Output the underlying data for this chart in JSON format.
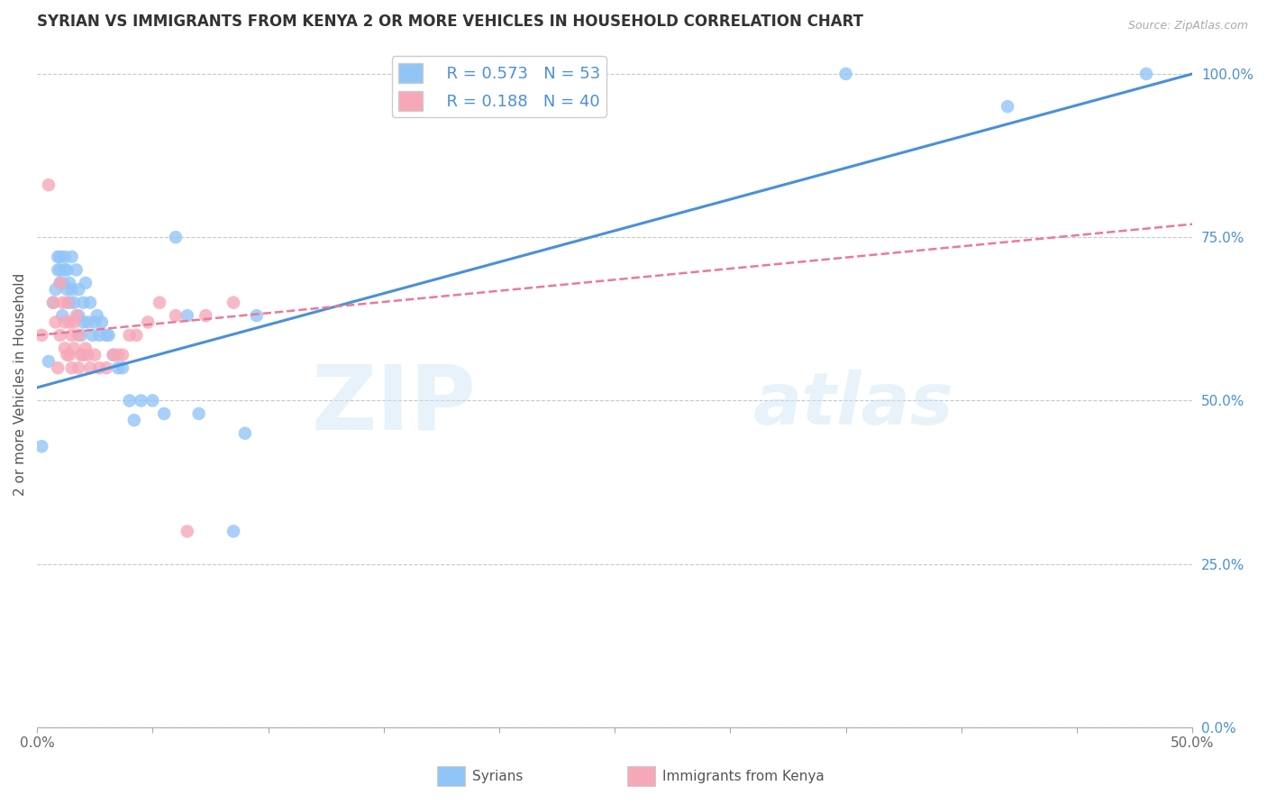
{
  "title": "SYRIAN VS IMMIGRANTS FROM KENYA 2 OR MORE VEHICLES IN HOUSEHOLD CORRELATION CHART",
  "source": "Source: ZipAtlas.com",
  "ylabel": "2 or more Vehicles in Household",
  "x_min": 0.0,
  "x_max": 0.5,
  "y_min": 0.0,
  "y_max": 1.05,
  "x_tick_pos": [
    0.0,
    0.05,
    0.1,
    0.15,
    0.2,
    0.25,
    0.3,
    0.35,
    0.4,
    0.45,
    0.5
  ],
  "x_tick_labels": [
    "0.0%",
    "",
    "",
    "",
    "",
    "",
    "",
    "",
    "",
    "",
    "50.0%"
  ],
  "y_tick_labels_right": [
    "0.0%",
    "25.0%",
    "50.0%",
    "75.0%",
    "100.0%"
  ],
  "y_ticks_right": [
    0.0,
    0.25,
    0.5,
    0.75,
    1.0
  ],
  "legend_r1": "R = 0.573",
  "legend_n1": "N = 53",
  "legend_r2": "R = 0.188",
  "legend_n2": "N = 40",
  "color_syrian": "#92c5f7",
  "color_kenya": "#f7a8b8",
  "color_trend_syrian": "#4a90d9",
  "color_trend_kenya": "#e87a9a",
  "watermark": "ZIPatlas",
  "syrian_x": [
    0.002,
    0.005,
    0.007,
    0.008,
    0.009,
    0.009,
    0.01,
    0.01,
    0.01,
    0.011,
    0.011,
    0.012,
    0.012,
    0.013,
    0.013,
    0.014,
    0.014,
    0.015,
    0.015,
    0.016,
    0.017,
    0.018,
    0.018,
    0.019,
    0.02,
    0.02,
    0.021,
    0.022,
    0.023,
    0.024,
    0.025,
    0.026,
    0.027,
    0.028,
    0.03,
    0.031,
    0.033,
    0.035,
    0.037,
    0.04,
    0.042,
    0.045,
    0.05,
    0.055,
    0.06,
    0.065,
    0.07,
    0.085,
    0.09,
    0.095,
    0.35,
    0.42,
    0.48
  ],
  "syrian_y": [
    0.43,
    0.56,
    0.65,
    0.67,
    0.72,
    0.7,
    0.68,
    0.7,
    0.72,
    0.68,
    0.63,
    0.7,
    0.72,
    0.67,
    0.7,
    0.65,
    0.68,
    0.72,
    0.67,
    0.65,
    0.7,
    0.63,
    0.67,
    0.6,
    0.62,
    0.65,
    0.68,
    0.62,
    0.65,
    0.6,
    0.62,
    0.63,
    0.6,
    0.62,
    0.6,
    0.6,
    0.57,
    0.55,
    0.55,
    0.5,
    0.47,
    0.5,
    0.5,
    0.48,
    0.75,
    0.63,
    0.48,
    0.3,
    0.45,
    0.63,
    1.0,
    0.95,
    1.0
  ],
  "kenya_x": [
    0.002,
    0.005,
    0.007,
    0.008,
    0.009,
    0.01,
    0.01,
    0.011,
    0.012,
    0.012,
    0.013,
    0.013,
    0.014,
    0.014,
    0.015,
    0.015,
    0.016,
    0.016,
    0.017,
    0.018,
    0.018,
    0.019,
    0.02,
    0.021,
    0.022,
    0.023,
    0.025,
    0.027,
    0.03,
    0.033,
    0.035,
    0.037,
    0.04,
    0.043,
    0.048,
    0.053,
    0.06,
    0.065,
    0.073,
    0.085
  ],
  "kenya_y": [
    0.6,
    0.83,
    0.65,
    0.62,
    0.55,
    0.68,
    0.6,
    0.65,
    0.62,
    0.58,
    0.65,
    0.57,
    0.62,
    0.57,
    0.6,
    0.55,
    0.62,
    0.58,
    0.63,
    0.6,
    0.55,
    0.57,
    0.57,
    0.58,
    0.57,
    0.55,
    0.57,
    0.55,
    0.55,
    0.57,
    0.57,
    0.57,
    0.6,
    0.6,
    0.62,
    0.65,
    0.63,
    0.3,
    0.63,
    0.65
  ],
  "trend_syrian_x0": 0.0,
  "trend_syrian_x1": 0.5,
  "trend_syrian_y0": 0.52,
  "trend_syrian_y1": 1.0,
  "trend_kenya_x0": 0.0,
  "trend_kenya_x1": 0.5,
  "trend_kenya_y0": 0.6,
  "trend_kenya_y1": 0.77
}
